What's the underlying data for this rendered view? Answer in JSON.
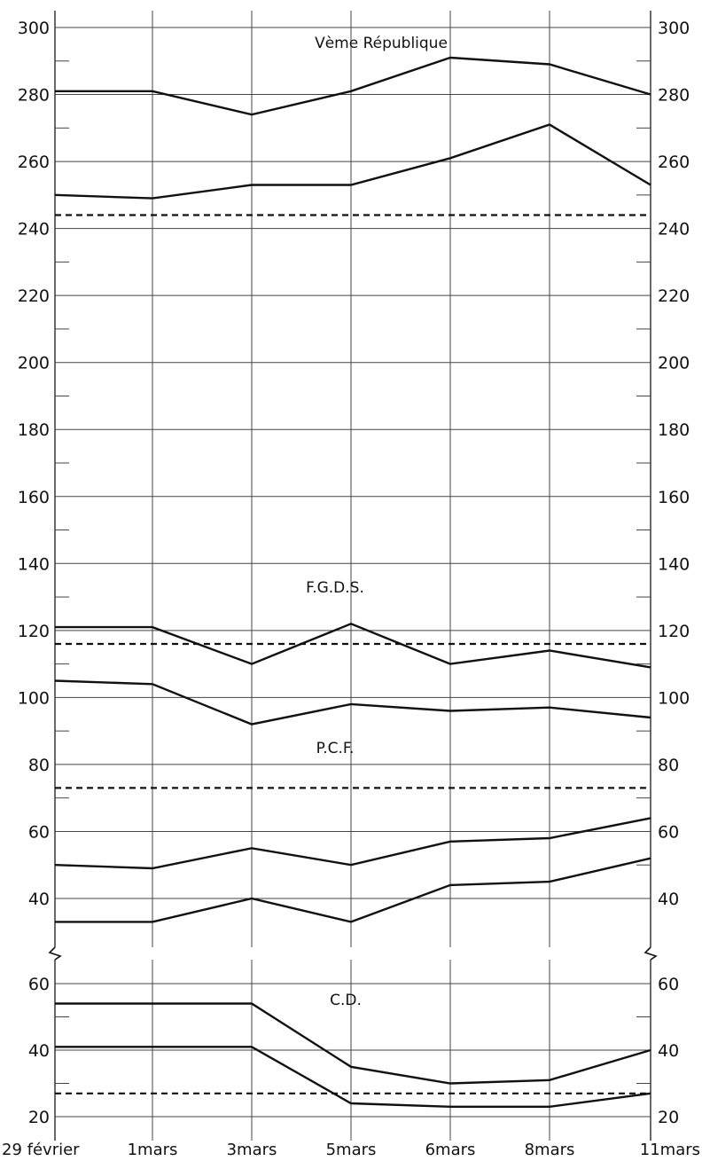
{
  "chart_data": [
    {
      "type": "line",
      "panel": "upper",
      "categories": [
        "29 février",
        "1mars",
        "3mars",
        "5mars",
        "6mars",
        "8mars",
        "11mars"
      ],
      "ylim": [
        25,
        300
      ],
      "yticks": [
        40,
        60,
        80,
        100,
        120,
        140,
        160,
        180,
        200,
        220,
        240,
        260,
        280,
        300
      ],
      "grid": true,
      "annotations": [
        "Ⅴème République",
        "F.G.D.S.",
        "P.C.F."
      ],
      "series": [
        {
          "values": [
            281,
            281,
            274,
            281,
            291,
            289,
            280
          ],
          "style": "solid"
        },
        {
          "values": [
            250,
            249,
            253,
            253,
            261,
            271,
            253
          ],
          "style": "solid"
        },
        {
          "values": [
            244,
            244,
            244,
            244,
            244,
            244,
            244
          ],
          "style": "dashed"
        },
        {
          "values": [
            121,
            121,
            110,
            122,
            110,
            114,
            109
          ],
          "style": "solid"
        },
        {
          "values": [
            116,
            116,
            116,
            116,
            116,
            116,
            116
          ],
          "style": "dashed"
        },
        {
          "values": [
            105,
            104,
            92,
            98,
            96,
            97,
            94
          ],
          "style": "solid"
        },
        {
          "values": [
            73,
            73,
            73,
            73,
            73,
            73,
            73
          ],
          "style": "dashed"
        },
        {
          "values": [
            50,
            49,
            55,
            50,
            57,
            58,
            64
          ],
          "style": "solid"
        },
        {
          "values": [
            33,
            33,
            40,
            33,
            44,
            45,
            52
          ],
          "style": "solid"
        }
      ]
    },
    {
      "type": "line",
      "panel": "lower",
      "categories": [
        "29 février",
        "1mars",
        "3mars",
        "5mars",
        "6mars",
        "8mars",
        "11mars"
      ],
      "ylim": [
        17,
        65
      ],
      "yticks": [
        20,
        40,
        60
      ],
      "grid": true,
      "annotations": [
        "C.D."
      ],
      "series": [
        {
          "values": [
            54,
            54,
            54,
            35,
            30,
            31,
            40
          ],
          "style": "solid"
        },
        {
          "values": [
            41,
            41,
            41,
            24,
            23,
            23,
            27
          ],
          "style": "solid"
        },
        {
          "values": [
            27,
            27,
            27,
            27,
            27,
            27,
            27
          ],
          "style": "dashed"
        }
      ]
    }
  ]
}
